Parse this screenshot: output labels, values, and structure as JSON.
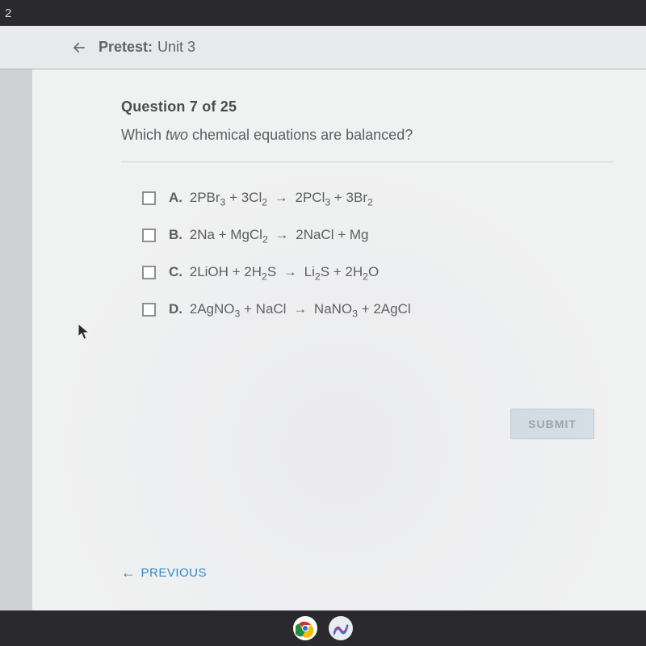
{
  "top_bar": {
    "left_text": "2"
  },
  "header": {
    "pretest_label": "Pretest:",
    "unit_label": "Unit 3"
  },
  "question": {
    "counter": "Question 7 of 25",
    "prompt_pre": "Which ",
    "prompt_em": "two",
    "prompt_post": " chemical equations are balanced?"
  },
  "options": [
    {
      "letter": "A.",
      "formula_html": "2PBr<sub>3</sub> + 3Cl<sub>2</sub> <span class=\"arrow\">→</span> 2PCl<sub>3</sub> + 3Br<sub>2</sub>"
    },
    {
      "letter": "B.",
      "formula_html": "2Na + MgCl<sub>2</sub> <span class=\"arrow\">→</span> 2NaCl + Mg"
    },
    {
      "letter": "C.",
      "formula_html": "2LiOH + 2H<sub>2</sub>S <span class=\"arrow\">→</span> Li<sub>2</sub>S + 2H<sub>2</sub>O"
    },
    {
      "letter": "D.",
      "formula_html": "2AgNO<sub>3</sub> + NaCl <span class=\"arrow\">→</span> NaNO<sub>3</sub> + 2AgCl"
    }
  ],
  "buttons": {
    "submit": "SUBMIT",
    "previous": "PREVIOUS"
  },
  "colors": {
    "dark_bar": "#2a2a2e",
    "header_bg": "#e7e9ea",
    "page_bg": "#f0f1f1",
    "text_primary": "#4a4d50",
    "text_body": "#5a5e63",
    "checkbox_border": "#8c9093",
    "submit_bg": "#d4dee6",
    "submit_text": "#9aa5ad",
    "link": "#2c89c9"
  }
}
